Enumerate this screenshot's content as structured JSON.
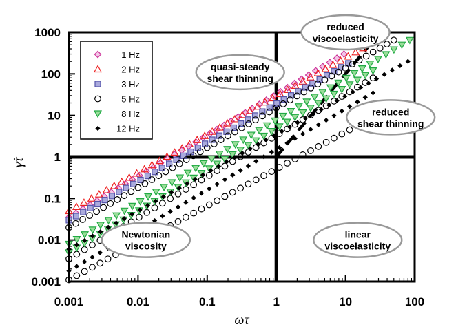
{
  "chart_data": {
    "type": "scatter",
    "xscale": "log",
    "yscale": "log",
    "xlim": [
      0.001,
      100
    ],
    "ylim": [
      0.001,
      1000
    ],
    "xlabel": "ωτ",
    "ylabel": "γ̇τ",
    "xticks": [
      "0.001",
      "0.01",
      "0.1",
      "1",
      "10",
      "100"
    ],
    "yticks": [
      "0.001",
      "0.01",
      "0.1",
      "1",
      "10",
      "100",
      "1000"
    ],
    "legend_position": "top-left",
    "reference_lines": [
      {
        "orientation": "vertical",
        "x": 1
      },
      {
        "orientation": "horizontal",
        "y": 1
      }
    ],
    "dashed_line": {
      "x": [
        1,
        30
      ],
      "y": [
        1,
        900
      ]
    },
    "annotations": [
      {
        "lines": [
          "quasi-steady",
          "shear thinning"
        ],
        "x": 0.3,
        "y": 110
      },
      {
        "lines": [
          "reduced",
          "viscoelasticity"
        ],
        "x": 10,
        "y": 1000
      },
      {
        "lines": [
          "reduced",
          "shear thinning"
        ],
        "x": 45,
        "y": 9
      },
      {
        "lines": [
          "Newtonian",
          "viscosity"
        ],
        "x": 0.013,
        "y": 0.01
      },
      {
        "lines": [
          "linear",
          "viscoelasticity"
        ],
        "x": 15,
        "y": 0.01
      }
    ],
    "series": [
      {
        "name": "1 Hz",
        "marker": "diamond",
        "color": "#cc3399",
        "fill": "#f3c6e6",
        "branches": [
          {
            "x0": 0.001,
            "x1": 9.5,
            "y0": 0.035,
            "y1": 300,
            "n": 40
          }
        ]
      },
      {
        "name": "2 Hz",
        "marker": "triangle-up",
        "color": "#ee2222",
        "fill": "none",
        "branches": [
          {
            "x0": 0.001,
            "x1": 18,
            "y0": 0.05,
            "y1": 420,
            "n": 40
          }
        ]
      },
      {
        "name": "3 Hz",
        "marker": "square",
        "color": "#5555aa",
        "fill": "#aaaadd",
        "branches": [
          {
            "x0": 0.001,
            "x1": 11,
            "y0": 0.03,
            "y1": 180,
            "n": 40
          }
        ]
      },
      {
        "name": "5 Hz",
        "marker": "circle",
        "color": "#000000",
        "fill": "none",
        "branches": [
          {
            "x0": 0.001,
            "x1": 50,
            "y0": 0.02,
            "y1": 650,
            "n": 48
          },
          {
            "x0": 0.001,
            "x1": 25,
            "y0": 0.0035,
            "y1": 80,
            "n": 40
          },
          {
            "x0": 0.001,
            "x1": 25,
            "y0": 0.0011,
            "y1": 9,
            "n": 40
          }
        ]
      },
      {
        "name": "8 Hz",
        "marker": "triangle-down",
        "color": "#22aa44",
        "fill": "#99dd99",
        "branches": [
          {
            "x0": 0.001,
            "x1": 85,
            "y0": 0.008,
            "y1": 650,
            "n": 44
          },
          {
            "x0": 0.001,
            "x1": 25,
            "y0": 0.005,
            "y1": 120,
            "n": 40
          }
        ]
      },
      {
        "name": "12 Hz",
        "marker": "diamond-small",
        "color": "#000000",
        "fill": "#000000",
        "branches": [
          {
            "x0": 0.001,
            "x1": 80,
            "y0": 0.006,
            "y1": 200,
            "n": 44
          },
          {
            "x0": 0.001,
            "x1": 25,
            "y0": 0.0018,
            "y1": 35,
            "n": 40
          }
        ]
      }
    ]
  }
}
